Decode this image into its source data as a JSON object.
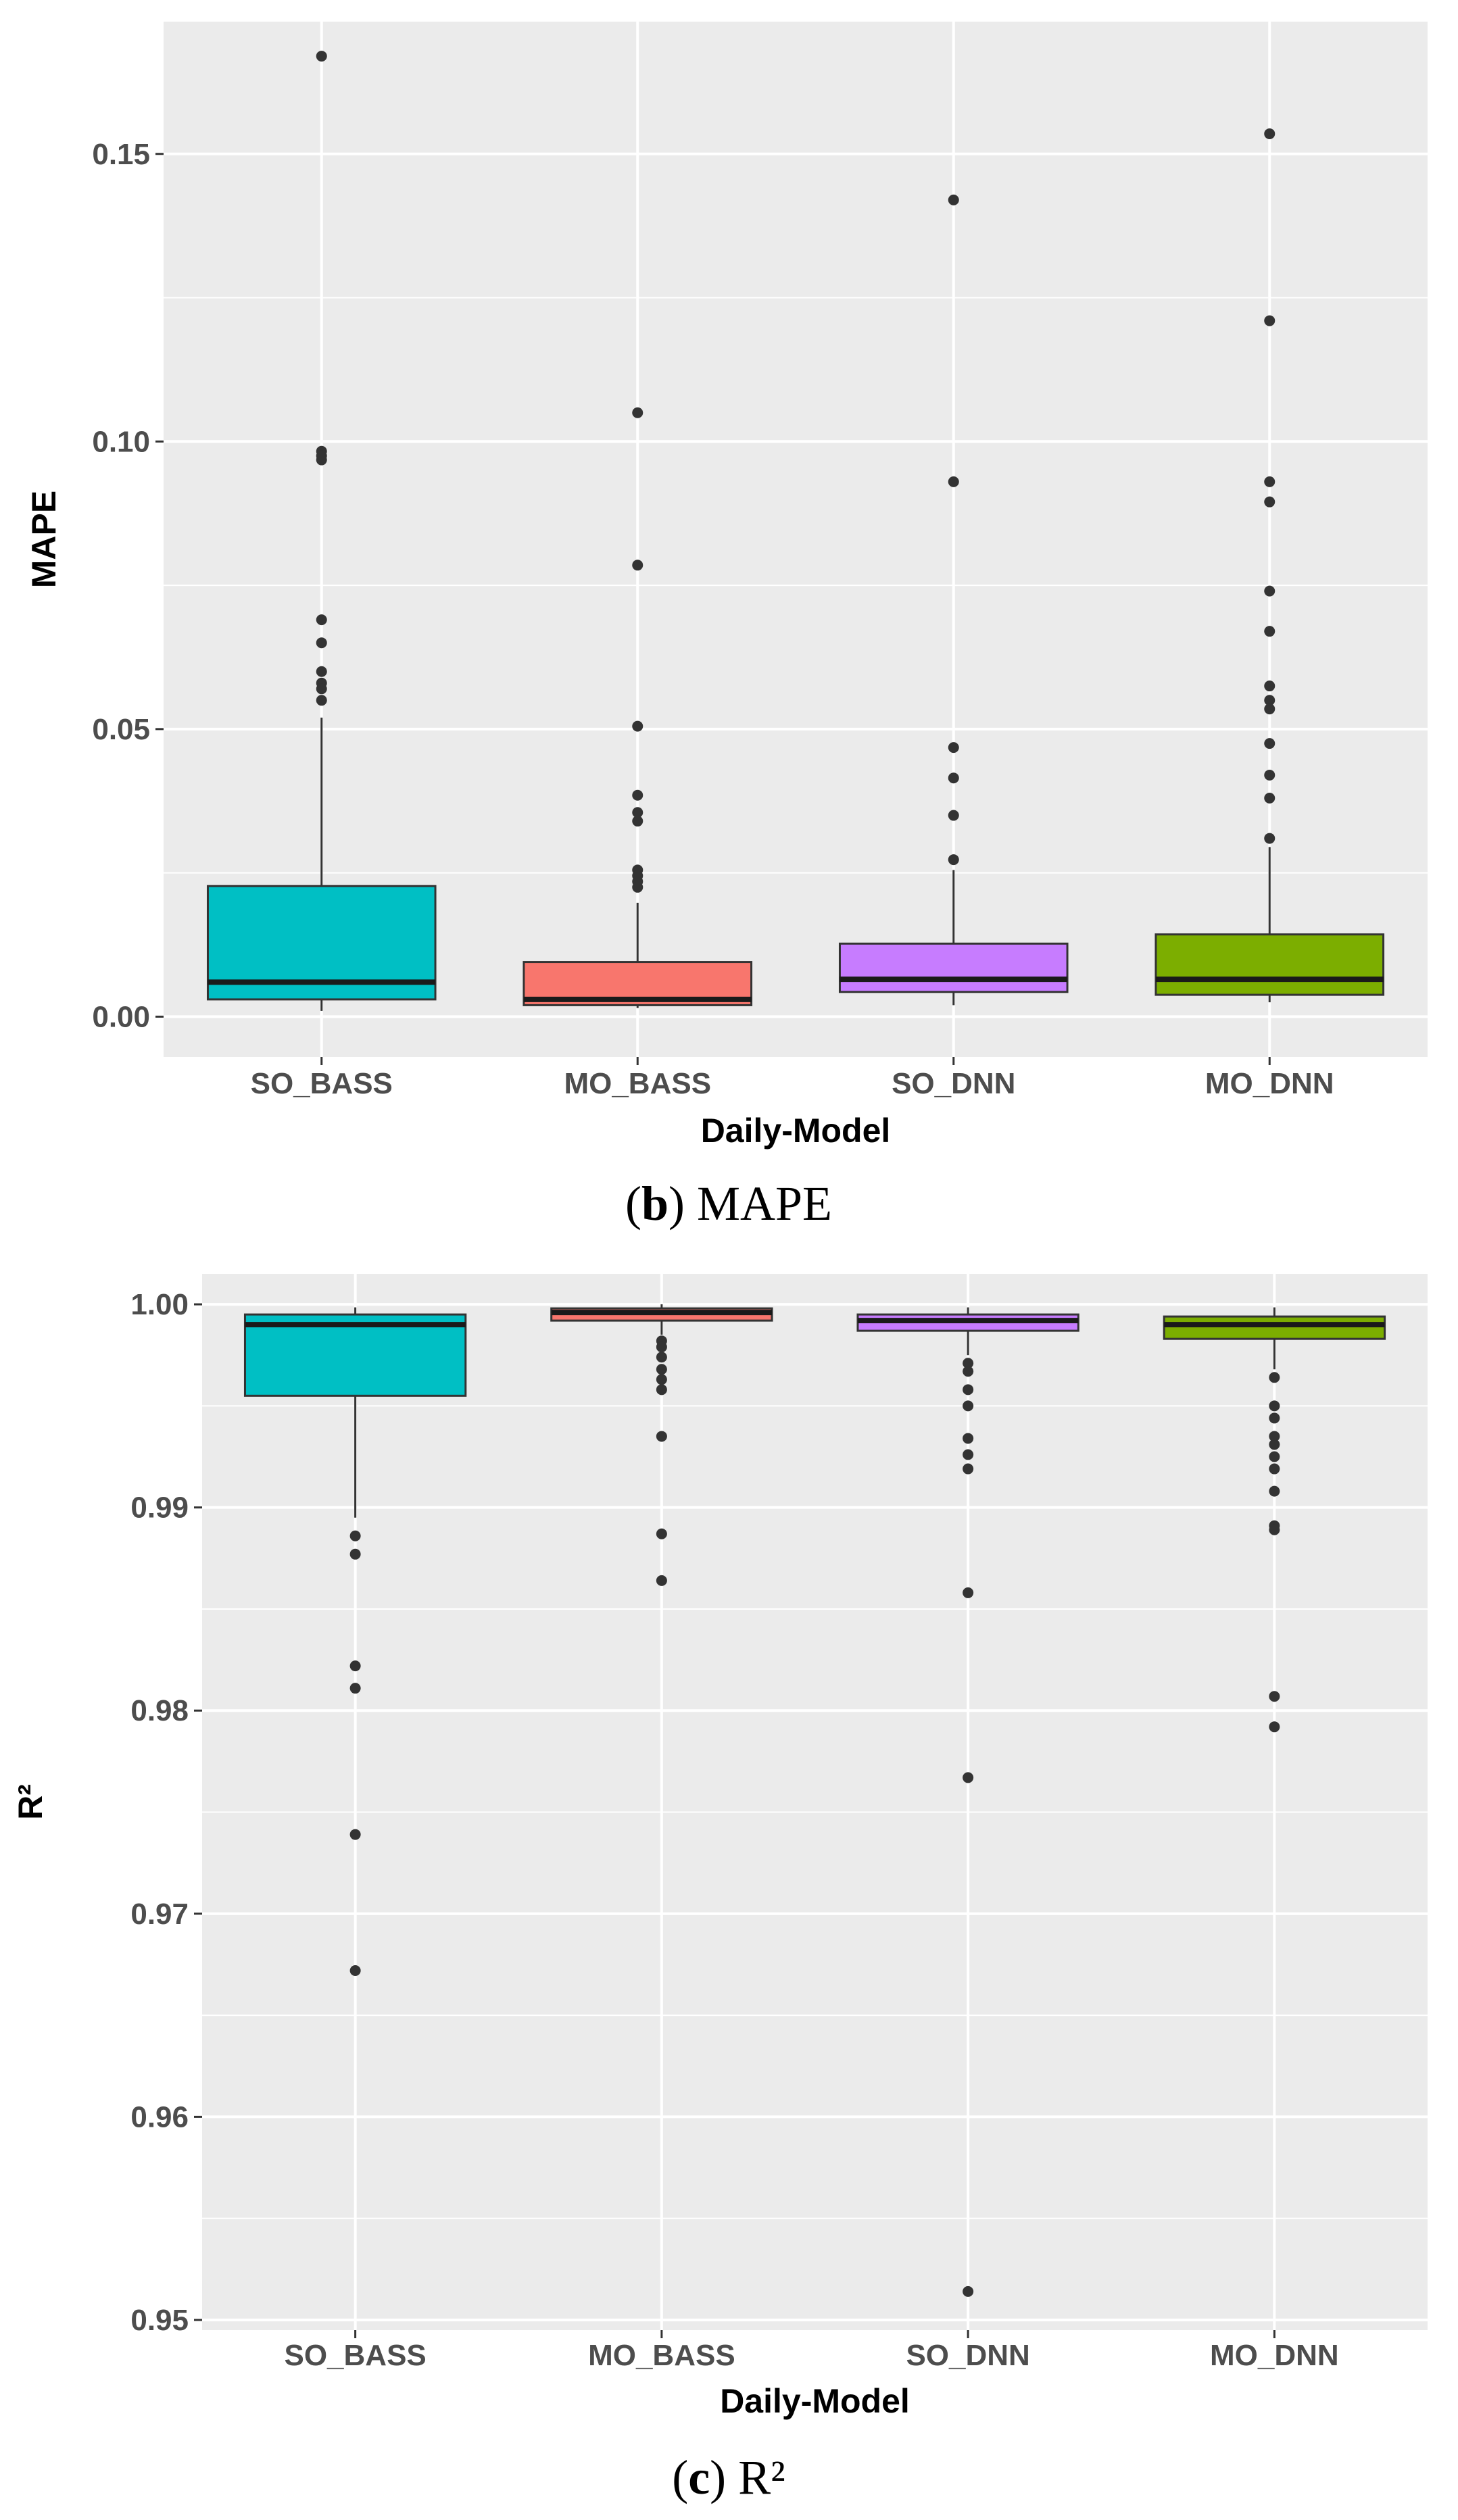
{
  "chart_data": [
    {
      "panel": "b",
      "type": "boxplot",
      "caption_letter": "b",
      "caption_text": "MAPE",
      "xlabel": "Daily-Model",
      "ylabel": "MAPE",
      "categories": [
        "SO_BASS",
        "MO_BASS",
        "SO_DNN",
        "MO_DNN"
      ],
      "colors": [
        "#00bfc4",
        "#f8766d",
        "#c77cff",
        "#7cae00"
      ],
      "ylim": [
        -0.007,
        0.173
      ],
      "yticks": [
        0.0,
        0.05,
        0.1,
        0.15
      ],
      "ytick_labels": [
        "0.00",
        "0.05",
        "0.10",
        "0.15"
      ],
      "grid": true,
      "boxes": [
        {
          "name": "SO_BASS",
          "whisker_low": 0.001,
          "q1": 0.003,
          "median": 0.006,
          "q3": 0.0227,
          "whisker_high": 0.052,
          "outliers": [
            0.167,
            0.0983,
            0.0975,
            0.0968,
            0.069,
            0.065,
            0.06,
            0.058,
            0.057,
            0.055
          ]
        },
        {
          "name": "MO_BASS",
          "whisker_low": 0.0015,
          "q1": 0.002,
          "median": 0.003,
          "q3": 0.0095,
          "whisker_high": 0.0198,
          "outliers": [
            0.105,
            0.0785,
            0.0505,
            0.0385,
            0.0355,
            0.034,
            0.0255,
            0.0245,
            0.0235,
            0.0225
          ]
        },
        {
          "name": "SO_DNN",
          "whisker_low": 0.002,
          "q1": 0.0043,
          "median": 0.0065,
          "q3": 0.0127,
          "whisker_high": 0.0255,
          "outliers": [
            0.142,
            0.093,
            0.0468,
            0.0415,
            0.035,
            0.0273
          ]
        },
        {
          "name": "MO_DNN",
          "whisker_low": 0.0025,
          "q1": 0.0038,
          "median": 0.0065,
          "q3": 0.0143,
          "whisker_high": 0.0295,
          "outliers": [
            0.1535,
            0.121,
            0.093,
            0.0895,
            0.074,
            0.067,
            0.0575,
            0.055,
            0.0535,
            0.0475,
            0.042,
            0.038,
            0.031
          ]
        }
      ]
    },
    {
      "panel": "c",
      "type": "boxplot",
      "caption_letter": "c",
      "caption_text": "R²",
      "xlabel": "Daily-Model",
      "ylabel": "R²",
      "categories": [
        "SO_BASS",
        "MO_BASS",
        "SO_DNN",
        "MO_DNN"
      ],
      "colors": [
        "#00bfc4",
        "#f8766d",
        "#c77cff",
        "#7cae00"
      ],
      "ylim": [
        0.9495,
        1.0015
      ],
      "yticks": [
        0.95,
        0.96,
        0.97,
        0.98,
        0.99,
        1.0
      ],
      "ytick_labels": [
        "0.95",
        "0.96",
        "0.97",
        "0.98",
        "0.99",
        "1.00"
      ],
      "grid": true,
      "boxes": [
        {
          "name": "SO_BASS",
          "whisker_low": 0.9895,
          "q1": 0.9955,
          "median": 0.999,
          "q3": 0.9995,
          "whisker_high": 0.99985,
          "outliers": [
            0.9886,
            0.9877,
            0.9822,
            0.9811,
            0.9739,
            0.9672
          ]
        },
        {
          "name": "MO_BASS",
          "whisker_low": 0.9985,
          "q1": 0.9992,
          "median": 0.9996,
          "q3": 0.9998,
          "whisker_high": 1.0,
          "outliers": [
            0.9982,
            0.9979,
            0.9974,
            0.9968,
            0.9963,
            0.9958,
            0.9935,
            0.9887,
            0.9864
          ]
        },
        {
          "name": "SO_DNN",
          "whisker_low": 0.9975,
          "q1": 0.9987,
          "median": 0.9992,
          "q3": 0.9995,
          "whisker_high": 0.99985,
          "outliers": [
            0.9971,
            0.9967,
            0.9958,
            0.995,
            0.9934,
            0.9926,
            0.9919,
            0.9858,
            0.9767,
            0.9514
          ]
        },
        {
          "name": "MO_DNN",
          "whisker_low": 0.9968,
          "q1": 0.9983,
          "median": 0.999,
          "q3": 0.9994,
          "whisker_high": 0.99985,
          "outliers": [
            0.9964,
            0.995,
            0.9944,
            0.9935,
            0.9931,
            0.9925,
            0.9919,
            0.9908,
            0.9891,
            0.9889,
            0.9807,
            0.9792
          ]
        }
      ]
    }
  ]
}
